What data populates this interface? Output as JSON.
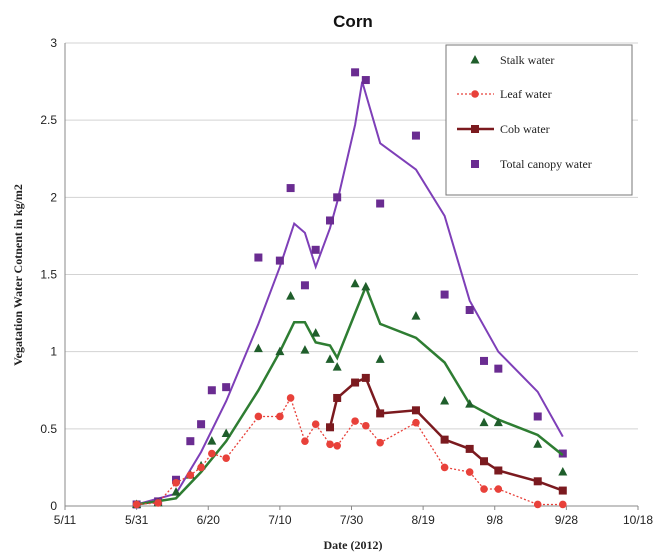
{
  "chart_data": {
    "type": "line",
    "title": "Corn",
    "xlabel": "Date (2012)",
    "ylabel": "Vegatation Water Cotnent in kg/m2",
    "xlim": [
      "2012-05-11",
      "2012-10-18"
    ],
    "ylim": [
      0,
      3
    ],
    "x_tick_labels": [
      "5/11",
      "5/31",
      "6/20",
      "7/10",
      "7/30",
      "8/19",
      "9/8",
      "9/28",
      "10/18"
    ],
    "y_tick_labels": [
      "0",
      "0.5",
      "1",
      "1.5",
      "2",
      "2.5",
      "3"
    ],
    "grid": "horizontal",
    "legend_position": "top-right",
    "series": [
      {
        "name": "Stalk water",
        "color": "#1f5e2b",
        "style": "triangle-markers-with-line",
        "points": [
          {
            "x": "2012-05-31",
            "y": 0.01
          },
          {
            "x": "2012-06-06",
            "y": 0.02
          },
          {
            "x": "2012-06-11",
            "y": 0.09
          },
          {
            "x": "2012-06-15",
            "y": 0.2
          },
          {
            "x": "2012-06-18",
            "y": 0.26
          },
          {
            "x": "2012-06-21",
            "y": 0.42
          },
          {
            "x": "2012-06-25",
            "y": 0.47
          },
          {
            "x": "2012-07-04",
            "y": 1.02
          },
          {
            "x": "2012-07-10",
            "y": 1.0
          },
          {
            "x": "2012-07-13",
            "y": 1.36
          },
          {
            "x": "2012-07-17",
            "y": 1.01
          },
          {
            "x": "2012-07-20",
            "y": 1.12
          },
          {
            "x": "2012-07-24",
            "y": 0.95
          },
          {
            "x": "2012-07-26",
            "y": 0.9
          },
          {
            "x": "2012-07-31",
            "y": 1.44
          },
          {
            "x": "2012-08-03",
            "y": 1.42
          },
          {
            "x": "2012-08-07",
            "y": 0.95
          },
          {
            "x": "2012-08-17",
            "y": 1.23
          },
          {
            "x": "2012-08-25",
            "y": 0.68
          },
          {
            "x": "2012-09-01",
            "y": 0.66
          },
          {
            "x": "2012-09-05",
            "y": 0.54
          },
          {
            "x": "2012-09-09",
            "y": 0.54
          },
          {
            "x": "2012-09-20",
            "y": 0.4
          },
          {
            "x": "2012-09-27",
            "y": 0.22
          }
        ],
        "line": [
          {
            "x": "2012-05-31",
            "y": 0.01
          },
          {
            "x": "2012-06-11",
            "y": 0.05
          },
          {
            "x": "2012-06-18",
            "y": 0.22
          },
          {
            "x": "2012-06-25",
            "y": 0.42
          },
          {
            "x": "2012-07-04",
            "y": 0.75
          },
          {
            "x": "2012-07-10",
            "y": 1.0
          },
          {
            "x": "2012-07-14",
            "y": 1.19
          },
          {
            "x": "2012-07-17",
            "y": 1.19
          },
          {
            "x": "2012-07-20",
            "y": 1.06
          },
          {
            "x": "2012-07-24",
            "y": 1.04
          },
          {
            "x": "2012-07-26",
            "y": 0.96
          },
          {
            "x": "2012-07-31",
            "y": 1.25
          },
          {
            "x": "2012-08-03",
            "y": 1.42
          },
          {
            "x": "2012-08-07",
            "y": 1.18
          },
          {
            "x": "2012-08-17",
            "y": 1.09
          },
          {
            "x": "2012-08-25",
            "y": 0.93
          },
          {
            "x": "2012-09-01",
            "y": 0.66
          },
          {
            "x": "2012-09-09",
            "y": 0.56
          },
          {
            "x": "2012-09-20",
            "y": 0.46
          },
          {
            "x": "2012-09-27",
            "y": 0.33
          }
        ]
      },
      {
        "name": "Leaf water",
        "color": "#e8413a",
        "style": "circle-markers-dotted-line",
        "points": [
          {
            "x": "2012-05-31",
            "y": 0.01
          },
          {
            "x": "2012-06-06",
            "y": 0.02
          },
          {
            "x": "2012-06-11",
            "y": 0.15
          },
          {
            "x": "2012-06-15",
            "y": 0.2
          },
          {
            "x": "2012-06-18",
            "y": 0.25
          },
          {
            "x": "2012-06-21",
            "y": 0.34
          },
          {
            "x": "2012-06-25",
            "y": 0.31
          },
          {
            "x": "2012-07-04",
            "y": 0.58
          },
          {
            "x": "2012-07-10",
            "y": 0.58
          },
          {
            "x": "2012-07-13",
            "y": 0.7
          },
          {
            "x": "2012-07-17",
            "y": 0.42
          },
          {
            "x": "2012-07-20",
            "y": 0.53
          },
          {
            "x": "2012-07-24",
            "y": 0.4
          },
          {
            "x": "2012-07-26",
            "y": 0.39
          },
          {
            "x": "2012-07-31",
            "y": 0.55
          },
          {
            "x": "2012-08-03",
            "y": 0.52
          },
          {
            "x": "2012-08-07",
            "y": 0.41
          },
          {
            "x": "2012-08-17",
            "y": 0.54
          },
          {
            "x": "2012-08-25",
            "y": 0.25
          },
          {
            "x": "2012-09-01",
            "y": 0.22
          },
          {
            "x": "2012-09-05",
            "y": 0.11
          },
          {
            "x": "2012-09-09",
            "y": 0.11
          },
          {
            "x": "2012-09-20",
            "y": 0.01
          },
          {
            "x": "2012-09-27",
            "y": 0.01
          }
        ]
      },
      {
        "name": "Cob water",
        "color": "#7b1a1f",
        "style": "square-markers-with-line",
        "points": [
          {
            "x": "2012-07-24",
            "y": 0.51
          },
          {
            "x": "2012-07-26",
            "y": 0.7
          },
          {
            "x": "2012-07-31",
            "y": 0.8
          },
          {
            "x": "2012-08-03",
            "y": 0.83
          },
          {
            "x": "2012-08-07",
            "y": 0.6
          },
          {
            "x": "2012-08-17",
            "y": 0.62
          },
          {
            "x": "2012-08-25",
            "y": 0.43
          },
          {
            "x": "2012-09-01",
            "y": 0.37
          },
          {
            "x": "2012-09-05",
            "y": 0.29
          },
          {
            "x": "2012-09-09",
            "y": 0.23
          },
          {
            "x": "2012-09-20",
            "y": 0.16
          },
          {
            "x": "2012-09-27",
            "y": 0.1
          }
        ]
      },
      {
        "name": "Total canopy water",
        "color": "#6a2c91",
        "style": "square-markers-with-line",
        "points": [
          {
            "x": "2012-05-31",
            "y": 0.01
          },
          {
            "x": "2012-06-06",
            "y": 0.03
          },
          {
            "x": "2012-06-11",
            "y": 0.17
          },
          {
            "x": "2012-06-15",
            "y": 0.42
          },
          {
            "x": "2012-06-18",
            "y": 0.53
          },
          {
            "x": "2012-06-21",
            "y": 0.75
          },
          {
            "x": "2012-06-25",
            "y": 0.77
          },
          {
            "x": "2012-07-04",
            "y": 1.61
          },
          {
            "x": "2012-07-10",
            "y": 1.59
          },
          {
            "x": "2012-07-13",
            "y": 2.06
          },
          {
            "x": "2012-07-17",
            "y": 1.43
          },
          {
            "x": "2012-07-20",
            "y": 1.66
          },
          {
            "x": "2012-07-24",
            "y": 1.85
          },
          {
            "x": "2012-07-26",
            "y": 2.0
          },
          {
            "x": "2012-07-31",
            "y": 2.81
          },
          {
            "x": "2012-08-03",
            "y": 2.76
          },
          {
            "x": "2012-08-07",
            "y": 1.96
          },
          {
            "x": "2012-08-17",
            "y": 2.4
          },
          {
            "x": "2012-08-25",
            "y": 1.37
          },
          {
            "x": "2012-09-01",
            "y": 1.27
          },
          {
            "x": "2012-09-05",
            "y": 0.94
          },
          {
            "x": "2012-09-09",
            "y": 0.89
          },
          {
            "x": "2012-09-20",
            "y": 0.58
          },
          {
            "x": "2012-09-27",
            "y": 0.34
          }
        ],
        "line": [
          {
            "x": "2012-05-31",
            "y": 0.01
          },
          {
            "x": "2012-06-11",
            "y": 0.08
          },
          {
            "x": "2012-06-18",
            "y": 0.35
          },
          {
            "x": "2012-06-25",
            "y": 0.68
          },
          {
            "x": "2012-07-04",
            "y": 1.18
          },
          {
            "x": "2012-07-10",
            "y": 1.55
          },
          {
            "x": "2012-07-14",
            "y": 1.83
          },
          {
            "x": "2012-07-17",
            "y": 1.77
          },
          {
            "x": "2012-07-20",
            "y": 1.55
          },
          {
            "x": "2012-07-24",
            "y": 1.8
          },
          {
            "x": "2012-07-26",
            "y": 1.97
          },
          {
            "x": "2012-07-31",
            "y": 2.47
          },
          {
            "x": "2012-08-02",
            "y": 2.75
          },
          {
            "x": "2012-08-07",
            "y": 2.35
          },
          {
            "x": "2012-08-17",
            "y": 2.18
          },
          {
            "x": "2012-08-25",
            "y": 1.88
          },
          {
            "x": "2012-09-01",
            "y": 1.33
          },
          {
            "x": "2012-09-09",
            "y": 1.0
          },
          {
            "x": "2012-09-20",
            "y": 0.74
          },
          {
            "x": "2012-09-27",
            "y": 0.45
          }
        ]
      }
    ]
  }
}
